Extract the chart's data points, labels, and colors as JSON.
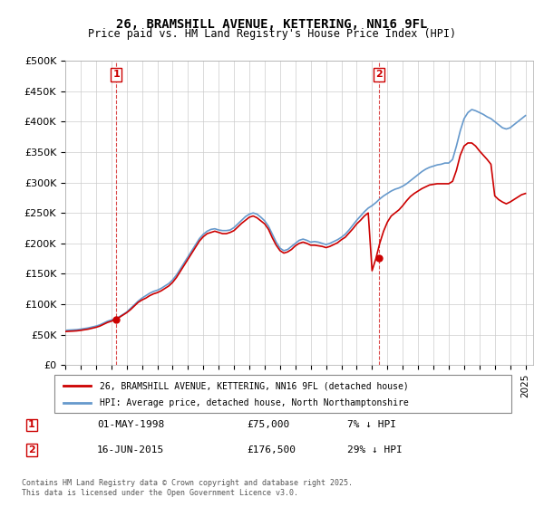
{
  "title_line1": "26, BRAMSHILL AVENUE, KETTERING, NN16 9FL",
  "title_line2": "Price paid vs. HM Land Registry's House Price Index (HPI)",
  "ylabel": "",
  "xlabel": "",
  "ylim": [
    0,
    500000
  ],
  "yticks": [
    0,
    50000,
    100000,
    150000,
    200000,
    250000,
    300000,
    350000,
    400000,
    450000,
    500000
  ],
  "ytick_labels": [
    "£0",
    "£50K",
    "£100K",
    "£150K",
    "£200K",
    "£250K",
    "£300K",
    "£350K",
    "£400K",
    "£450K",
    "£500K"
  ],
  "xlim_start": 1995.0,
  "xlim_end": 2025.5,
  "xtick_years": [
    1995,
    1996,
    1997,
    1998,
    1999,
    2000,
    2001,
    2002,
    2003,
    2004,
    2005,
    2006,
    2007,
    2008,
    2009,
    2010,
    2011,
    2012,
    2013,
    2014,
    2015,
    2016,
    2017,
    2018,
    2019,
    2020,
    2021,
    2022,
    2023,
    2024,
    2025
  ],
  "red_line_color": "#cc0000",
  "blue_line_color": "#6699cc",
  "background_color": "#ffffff",
  "grid_color": "#cccccc",
  "purchase1_x": 1998.33,
  "purchase1_y": 75000,
  "purchase1_label": "1",
  "purchase2_x": 2015.46,
  "purchase2_y": 176500,
  "purchase2_label": "2",
  "marker_color": "#cc0000",
  "vline_color": "#cc0000",
  "legend_label_red": "26, BRAMSHILL AVENUE, KETTERING, NN16 9FL (detached house)",
  "legend_label_blue": "HPI: Average price, detached house, North Northamptonshire",
  "annotation1_num": "1",
  "annotation1_date": "01-MAY-1998",
  "annotation1_price": "£75,000",
  "annotation1_hpi": "7% ↓ HPI",
  "annotation2_num": "2",
  "annotation2_date": "16-JUN-2015",
  "annotation2_price": "£176,500",
  "annotation2_hpi": "29% ↓ HPI",
  "footer": "Contains HM Land Registry data © Crown copyright and database right 2025.\nThis data is licensed under the Open Government Licence v3.0.",
  "hpi_data_x": [
    1995.0,
    1995.25,
    1995.5,
    1995.75,
    1996.0,
    1996.25,
    1996.5,
    1996.75,
    1997.0,
    1997.25,
    1997.5,
    1997.75,
    1998.0,
    1998.25,
    1998.5,
    1998.75,
    1999.0,
    1999.25,
    1999.5,
    1999.75,
    2000.0,
    2000.25,
    2000.5,
    2000.75,
    2001.0,
    2001.25,
    2001.5,
    2001.75,
    2002.0,
    2002.25,
    2002.5,
    2002.75,
    2003.0,
    2003.25,
    2003.5,
    2003.75,
    2004.0,
    2004.25,
    2004.5,
    2004.75,
    2005.0,
    2005.25,
    2005.5,
    2005.75,
    2006.0,
    2006.25,
    2006.5,
    2006.75,
    2007.0,
    2007.25,
    2007.5,
    2007.75,
    2008.0,
    2008.25,
    2008.5,
    2008.75,
    2009.0,
    2009.25,
    2009.5,
    2009.75,
    2010.0,
    2010.25,
    2010.5,
    2010.75,
    2011.0,
    2011.25,
    2011.5,
    2011.75,
    2012.0,
    2012.25,
    2012.5,
    2012.75,
    2013.0,
    2013.25,
    2013.5,
    2013.75,
    2014.0,
    2014.25,
    2014.5,
    2014.75,
    2015.0,
    2015.25,
    2015.5,
    2015.75,
    2016.0,
    2016.25,
    2016.5,
    2016.75,
    2017.0,
    2017.25,
    2017.5,
    2017.75,
    2018.0,
    2018.25,
    2018.5,
    2018.75,
    2019.0,
    2019.25,
    2019.5,
    2019.75,
    2020.0,
    2020.25,
    2020.5,
    2020.75,
    2021.0,
    2021.25,
    2021.5,
    2021.75,
    2022.0,
    2022.25,
    2022.5,
    2022.75,
    2023.0,
    2023.25,
    2023.5,
    2023.75,
    2024.0,
    2024.25,
    2024.5,
    2024.75,
    2025.0
  ],
  "hpi_data_y": [
    57000,
    57500,
    57800,
    58200,
    59000,
    60000,
    61000,
    62500,
    64000,
    66000,
    69000,
    72000,
    74000,
    76000,
    79000,
    83000,
    87000,
    93000,
    99000,
    105000,
    110000,
    114000,
    118000,
    121000,
    123000,
    126000,
    130000,
    134000,
    140000,
    148000,
    158000,
    168000,
    178000,
    188000,
    198000,
    208000,
    215000,
    220000,
    223000,
    224000,
    222000,
    221000,
    221000,
    222000,
    226000,
    232000,
    238000,
    244000,
    248000,
    250000,
    248000,
    243000,
    237000,
    228000,
    215000,
    202000,
    192000,
    188000,
    190000,
    195000,
    200000,
    205000,
    207000,
    205000,
    202000,
    203000,
    202000,
    200000,
    198000,
    200000,
    203000,
    206000,
    210000,
    215000,
    222000,
    230000,
    238000,
    245000,
    252000,
    258000,
    262000,
    267000,
    273000,
    278000,
    282000,
    286000,
    289000,
    291000,
    294000,
    298000,
    303000,
    308000,
    313000,
    318000,
    322000,
    325000,
    327000,
    329000,
    330000,
    332000,
    332000,
    338000,
    360000,
    385000,
    405000,
    415000,
    420000,
    418000,
    415000,
    412000,
    408000,
    405000,
    400000,
    395000,
    390000,
    388000,
    390000,
    395000,
    400000,
    405000,
    410000
  ],
  "red_data_x": [
    1995.0,
    1995.25,
    1995.5,
    1995.75,
    1996.0,
    1996.25,
    1996.5,
    1996.75,
    1997.0,
    1997.25,
    1997.5,
    1997.75,
    1998.0,
    1998.25,
    1998.5,
    1998.75,
    1999.0,
    1999.25,
    1999.5,
    1999.75,
    2000.0,
    2000.25,
    2000.5,
    2000.75,
    2001.0,
    2001.25,
    2001.5,
    2001.75,
    2002.0,
    2002.25,
    2002.5,
    2002.75,
    2003.0,
    2003.25,
    2003.5,
    2003.75,
    2004.0,
    2004.25,
    2004.5,
    2004.75,
    2005.0,
    2005.25,
    2005.5,
    2005.75,
    2006.0,
    2006.25,
    2006.5,
    2006.75,
    2007.0,
    2007.25,
    2007.5,
    2007.75,
    2008.0,
    2008.25,
    2008.5,
    2008.75,
    2009.0,
    2009.25,
    2009.5,
    2009.75,
    2010.0,
    2010.25,
    2010.5,
    2010.75,
    2011.0,
    2011.25,
    2011.5,
    2011.75,
    2012.0,
    2012.25,
    2012.5,
    2012.75,
    2013.0,
    2013.25,
    2013.5,
    2013.75,
    2014.0,
    2014.25,
    2014.5,
    2014.75,
    2015.0,
    2015.25,
    2015.5,
    2015.75,
    2016.0,
    2016.25,
    2016.5,
    2016.75,
    2017.0,
    2017.25,
    2017.5,
    2017.75,
    2018.0,
    2018.25,
    2018.5,
    2018.75,
    2019.0,
    2019.25,
    2019.5,
    2019.75,
    2020.0,
    2020.25,
    2020.5,
    2020.75,
    2021.0,
    2021.25,
    2021.5,
    2021.75,
    2022.0,
    2022.25,
    2022.5,
    2022.75,
    2023.0,
    2023.25,
    2023.5,
    2023.75,
    2024.0,
    2024.25,
    2024.5,
    2024.75,
    2025.0
  ],
  "red_data_y": [
    55000,
    55500,
    55800,
    56200,
    57000,
    58000,
    59000,
    60500,
    62000,
    64000,
    67000,
    70000,
    72000,
    75000,
    78000,
    82000,
    86000,
    91000,
    97000,
    103000,
    107000,
    110000,
    114000,
    117000,
    119000,
    122000,
    126000,
    130000,
    136000,
    144000,
    154000,
    164000,
    174000,
    184000,
    194000,
    204000,
    211000,
    216000,
    218000,
    220000,
    218000,
    216000,
    216000,
    218000,
    221000,
    227000,
    233000,
    238000,
    243000,
    245000,
    242000,
    237000,
    232000,
    223000,
    209000,
    197000,
    188000,
    184000,
    186000,
    190000,
    196000,
    200000,
    202000,
    200000,
    197000,
    197000,
    196000,
    195000,
    193000,
    195000,
    198000,
    201000,
    206000,
    210000,
    217000,
    224000,
    232000,
    238000,
    245000,
    250000,
    155000,
    175000,
    200000,
    220000,
    235000,
    245000,
    250000,
    255000,
    262000,
    270000,
    277000,
    282000,
    286000,
    290000,
    293000,
    296000,
    297000,
    298000,
    298000,
    298000,
    298000,
    302000,
    320000,
    345000,
    360000,
    365000,
    365000,
    360000,
    352000,
    345000,
    338000,
    330000,
    278000,
    272000,
    268000,
    265000,
    268000,
    272000,
    276000,
    280000,
    282000
  ]
}
